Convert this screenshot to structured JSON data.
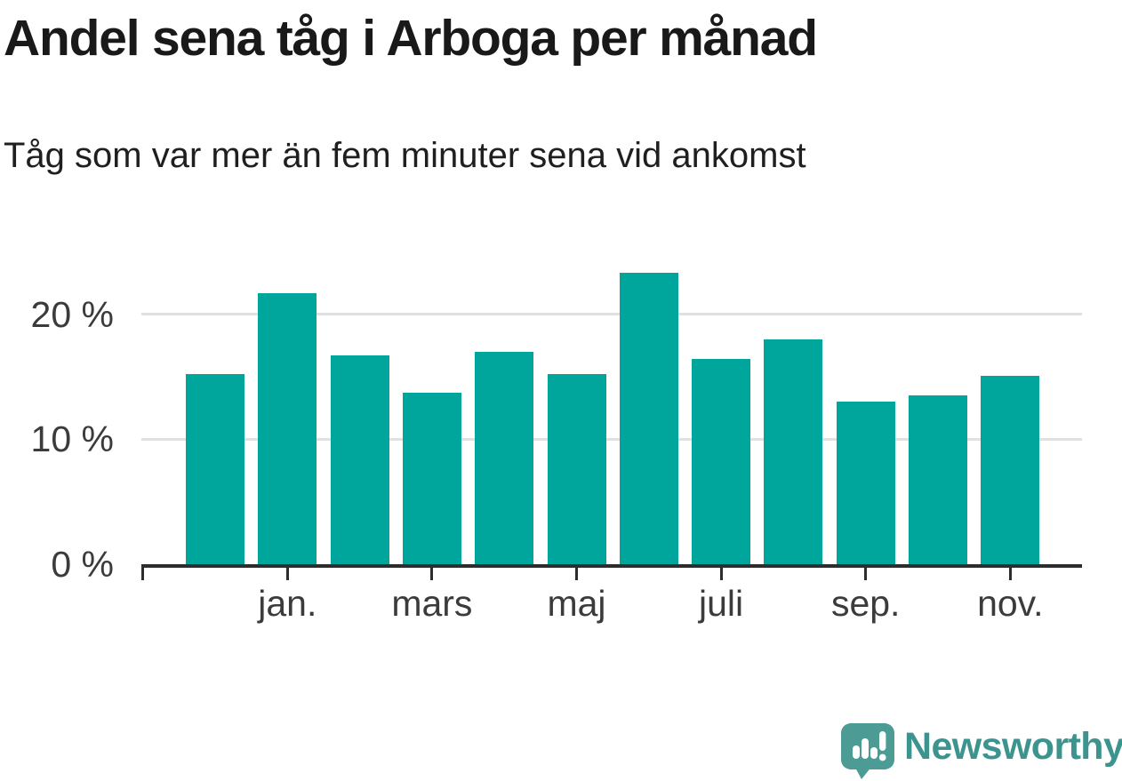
{
  "header": {
    "title": "Andel sena tåg i Arboga per månad",
    "subtitle": "Tåg som var mer än fem minuter sena vid ankomst"
  },
  "chart_data": {
    "type": "bar",
    "title": "Andel sena tåg i Arboga per månad",
    "subtitle": "Tåg som var mer än fem minuter sena vid ankomst",
    "categories": [
      "",
      "jan.",
      "",
      "mars",
      "",
      "maj",
      "",
      "juli",
      "",
      "sep.",
      "",
      "nov."
    ],
    "values": [
      15.2,
      21.7,
      16.7,
      13.7,
      17.0,
      15.2,
      23.3,
      16.4,
      18.0,
      13.0,
      13.5,
      15.1
    ],
    "unit": "%",
    "xlabel": "",
    "ylabel": "",
    "ylim": [
      0,
      24.25
    ],
    "y_tick_values": [
      0,
      10,
      20
    ],
    "y_ticks": [
      "0 %",
      "10 %",
      "20 %"
    ],
    "x_tick_labels_visible": [
      "jan.",
      "mars",
      "maj",
      "juli",
      "sep.",
      "nov."
    ],
    "grid": "horizontal-behind-bars",
    "legend": "none",
    "colors": {
      "bar": "#00A59B",
      "gridline": "#e1e1e1",
      "axis": "#2d2d2d",
      "tick_label": "#3b3b3b",
      "title_text": "#191919"
    }
  },
  "footer": {
    "brand": "Newsworthy",
    "brand_color": "#3D948E",
    "logo_bubble_color": "#4C9B95",
    "logo_glyph": "mini-bar-chart-with-exclamation"
  }
}
